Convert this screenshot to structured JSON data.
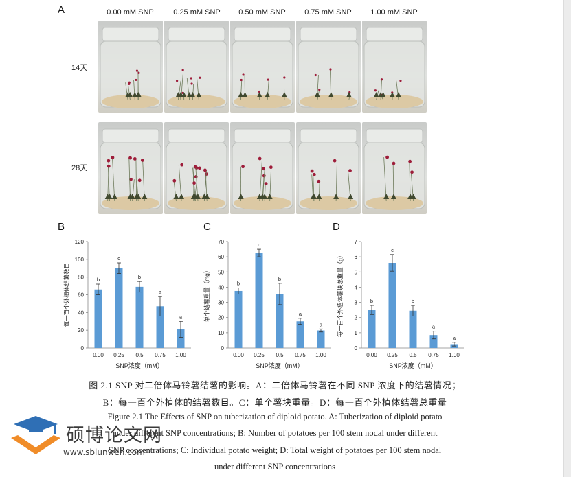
{
  "panel_labels": {
    "A": "A",
    "B": "B",
    "C": "C",
    "D": "D"
  },
  "photo_columns": [
    "0.00 mM SNP",
    "0.25 mM SNP",
    "0.50 mM SNP",
    "0.75 mM SNP",
    "1.00 mM SNP"
  ],
  "photo_rows": [
    "14天",
    "28天"
  ],
  "charts": [
    {
      "id": "B",
      "type": "bar",
      "ylabel": "每一百个外植体结薯数目",
      "xlabel": "SNP浓度（mM）",
      "categories": [
        "0.00",
        "0.25",
        "0.5",
        "0.75",
        "1.00"
      ],
      "values": [
        66,
        90,
        69,
        47,
        21
      ],
      "errors": [
        6,
        6,
        6,
        11,
        9
      ],
      "letters": [
        "b",
        "c",
        "b",
        "a",
        "a"
      ],
      "ylim": [
        0,
        120
      ],
      "yticks": [
        "0",
        "20",
        "40",
        "60",
        "80",
        "100",
        "120"
      ],
      "color": "#5b9bd5"
    },
    {
      "id": "C",
      "type": "bar",
      "ylabel": "单个结薯重量（mg）",
      "xlabel": "SNP浓度（mM）",
      "categories": [
        "0.00",
        "0.25",
        "0.5",
        "0.75",
        "1.00"
      ],
      "values": [
        37.5,
        62.5,
        35.5,
        17.5,
        11.5
      ],
      "errors": [
        2,
        2.5,
        7,
        2,
        1
      ],
      "letters": [
        "b",
        "c",
        "b",
        "a",
        "a"
      ],
      "ylim": [
        0,
        70
      ],
      "yticks": [
        "0",
        "10",
        "20",
        "30",
        "40",
        "50",
        "60",
        "70"
      ],
      "color": "#5b9bd5"
    },
    {
      "id": "D",
      "type": "bar",
      "ylabel": "每一百个外植体薯块总重量（g）",
      "xlabel": "SNP浓度（mM）",
      "categories": [
        "0.00",
        "0.25",
        "0.5",
        "0.75",
        "1.00"
      ],
      "values": [
        2.5,
        5.6,
        2.45,
        0.85,
        0.25
      ],
      "errors": [
        0.3,
        0.55,
        0.35,
        0.25,
        0.12
      ],
      "letters": [
        "b",
        "c",
        "b",
        "a",
        "a"
      ],
      "ylim": [
        0,
        7
      ],
      "yticks": [
        "0",
        "1",
        "2",
        "3",
        "4",
        "5",
        "6",
        "7"
      ],
      "color": "#5b9bd5"
    }
  ],
  "caption": {
    "cn_line1": "图 2.1 SNP 对二倍体马铃薯结薯的影响。A：二倍体马铃薯在不同 SNP 浓度下的结薯情况；",
    "cn_line2": "B：每一百个外植体的结薯数目。C：单个薯块重量。D：每一百个外植体结薯总重量",
    "en_line1": "Figure 2.1 The Effects of SNP on tuberization of diploid potato. A: Tuberization of diploid potato",
    "en_line2": "under different SNP concentrations; B: Number of potatoes per 100 stem nodal under different",
    "en_line3": "SNP concentrations; C: Individual potato weight; D: Total weight of potatoes per 100 stem nodal",
    "en_line4": "under different SNP concentrations"
  },
  "watermark": {
    "name": "硕博论文网",
    "url": "www.sblunwen.com",
    "colors": {
      "orange": "#f08c28",
      "blue": "#2f6fb5"
    }
  }
}
